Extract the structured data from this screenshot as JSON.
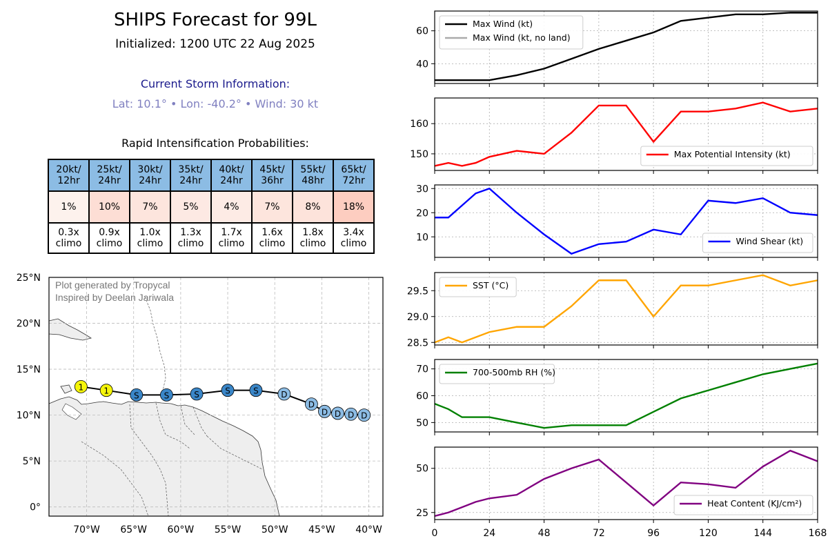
{
  "header": {
    "title": "SHIPS Forecast for 99L",
    "initialized": "Initialized: 1200 UTC 22 Aug 2025",
    "current_heading": "Current Storm Information:",
    "current_info": "Lat: 10.1° • Lon: -40.2° • Wind: 30 kt",
    "ri_heading": "Rapid Intensification Probabilities:"
  },
  "ri_table": [
    {
      "label_1": "20kt/",
      "label_2": "12hr",
      "prob": "1%",
      "prob_value": 1,
      "climo_1": "0.3x",
      "climo_2": "climo"
    },
    {
      "label_1": "25kt/",
      "label_2": "24hr",
      "prob": "10%",
      "prob_value": 10,
      "climo_1": "0.9x",
      "climo_2": "climo"
    },
    {
      "label_1": "30kt/",
      "label_2": "24hr",
      "prob": "7%",
      "prob_value": 7,
      "climo_1": "1.0x",
      "climo_2": "climo"
    },
    {
      "label_1": "35kt/",
      "label_2": "24hr",
      "prob": "5%",
      "prob_value": 5,
      "climo_1": "1.3x",
      "climo_2": "climo"
    },
    {
      "label_1": "40kt/",
      "label_2": "24hr",
      "prob": "4%",
      "prob_value": 4,
      "climo_1": "1.7x",
      "climo_2": "climo"
    },
    {
      "label_1": "45kt/",
      "label_2": "36hr",
      "prob": "7%",
      "prob_value": 7,
      "climo_1": "1.6x",
      "climo_2": "climo"
    },
    {
      "label_1": "55kt/",
      "label_2": "48hr",
      "prob": "8%",
      "prob_value": 8,
      "climo_1": "1.8x",
      "climo_2": "climo"
    },
    {
      "label_1": "65kt/",
      "label_2": "72hr",
      "prob": "18%",
      "prob_value": 18,
      "climo_1": "3.4x",
      "climo_2": "climo"
    }
  ],
  "map": {
    "credit_1": "Plot generated by Tropycal",
    "credit_2": "Inspired by Deelan Jariwala",
    "lat_ticks": [
      {
        "v": 25,
        "label": "25°N"
      },
      {
        "v": 20,
        "label": "20°N"
      },
      {
        "v": 15,
        "label": "15°N"
      },
      {
        "v": 10,
        "label": "10°N"
      },
      {
        "v": 5,
        "label": "5°N"
      },
      {
        "v": 0,
        "label": "0°"
      }
    ],
    "lon_ticks": [
      {
        "v": -70,
        "label": "70°W"
      },
      {
        "v": -65,
        "label": "65°W"
      },
      {
        "v": -60,
        "label": "60°W"
      },
      {
        "v": -55,
        "label": "55°W"
      },
      {
        "v": -50,
        "label": "50°W"
      },
      {
        "v": -45,
        "label": "45°W"
      },
      {
        "v": -40,
        "label": "40°W"
      }
    ],
    "extent": {
      "lon_min": -74,
      "lon_max": -38.5,
      "lat_min": -1,
      "lat_max": 25
    },
    "track": [
      {
        "lon": -40.5,
        "lat": 10.0,
        "cat": "D"
      },
      {
        "lon": -41.9,
        "lat": 10.1,
        "cat": "D"
      },
      {
        "lon": -43.3,
        "lat": 10.2,
        "cat": "D"
      },
      {
        "lon": -44.7,
        "lat": 10.4,
        "cat": "D"
      },
      {
        "lon": -46.1,
        "lat": 11.2,
        "cat": "D"
      },
      {
        "lon": -49.0,
        "lat": 12.3,
        "cat": "D"
      },
      {
        "lon": -52.0,
        "lat": 12.7,
        "cat": "S"
      },
      {
        "lon": -55.0,
        "lat": 12.7,
        "cat": "S"
      },
      {
        "lon": -58.3,
        "lat": 12.3,
        "cat": "S"
      },
      {
        "lon": -61.5,
        "lat": 12.2,
        "cat": "S"
      },
      {
        "lon": -64.7,
        "lat": 12.2,
        "cat": "S"
      },
      {
        "lon": -67.9,
        "lat": 12.7,
        "cat": "1"
      },
      {
        "lon": -70.6,
        "lat": 13.1,
        "cat": "1"
      }
    ],
    "colors": {
      "D": "#8cbce4",
      "S": "#3a86c8",
      "1": "#f5f50a"
    }
  },
  "chart_data": [
    {
      "type": "line",
      "name": "max-wind",
      "x": [
        0,
        6,
        12,
        18,
        24,
        36,
        48,
        60,
        72,
        84,
        96,
        108,
        120,
        132,
        144,
        156,
        168
      ],
      "series": [
        {
          "name": "Max Wind (kt)",
          "color": "#000000",
          "values": [
            30,
            30,
            30,
            30,
            30,
            33,
            37,
            43,
            49,
            54,
            59,
            66,
            68,
            70,
            70,
            71,
            71
          ]
        }
      ],
      "legend_extra": {
        "label": "Max Wind (kt, no land)",
        "color": "#aaaaaa"
      },
      "legend": "top-left",
      "ylim": [
        28,
        72
      ],
      "yticks": [
        40,
        60
      ]
    },
    {
      "type": "line",
      "name": "mpi",
      "x": [
        0,
        6,
        12,
        18,
        24,
        36,
        48,
        60,
        72,
        84,
        96,
        108,
        120,
        132,
        144,
        156,
        168
      ],
      "series": [
        {
          "name": "Max Potential Intensity (kt)",
          "color": "#ff0000",
          "values": [
            146,
            147,
            146,
            147,
            149,
            151,
            150,
            157,
            166,
            166,
            154,
            164,
            164,
            165,
            167,
            164,
            165
          ]
        }
      ],
      "legend": "bottom-right",
      "ylim": [
        144.5,
        168.5
      ],
      "yticks": [
        150,
        160
      ]
    },
    {
      "type": "line",
      "name": "shear",
      "x": [
        0,
        6,
        12,
        18,
        24,
        36,
        48,
        60,
        72,
        84,
        96,
        108,
        120,
        132,
        144,
        156,
        168
      ],
      "series": [
        {
          "name": "Wind Shear (kt)",
          "color": "#0000ff",
          "values": [
            18,
            18,
            23,
            28,
            30,
            20,
            11,
            3,
            7,
            8,
            13,
            11,
            25,
            24,
            26,
            20,
            19
          ]
        }
      ],
      "legend": "bottom-right",
      "ylim": [
        1.5,
        31.5
      ],
      "yticks": [
        10,
        20,
        30
      ]
    },
    {
      "type": "line",
      "name": "sst",
      "x": [
        0,
        6,
        12,
        18,
        24,
        36,
        48,
        60,
        72,
        84,
        96,
        108,
        120,
        132,
        144,
        156,
        168
      ],
      "series": [
        {
          "name": "SST (°C)",
          "color": "#ffa500",
          "values": [
            28.5,
            28.6,
            28.5,
            28.6,
            28.7,
            28.8,
            28.8,
            29.2,
            29.7,
            29.7,
            29.0,
            29.6,
            29.6,
            29.7,
            29.8,
            29.6,
            29.7
          ]
        }
      ],
      "legend": "top-left",
      "ylim": [
        28.45,
        29.85
      ],
      "yticks": [
        28.5,
        29.0,
        29.5
      ]
    },
    {
      "type": "line",
      "name": "rh",
      "x": [
        0,
        6,
        12,
        18,
        24,
        36,
        48,
        60,
        72,
        84,
        96,
        108,
        120,
        132,
        144,
        156,
        168
      ],
      "series": [
        {
          "name": "700-500mb RH (%)",
          "color": "#008000",
          "values": [
            57,
            55,
            52,
            52,
            52,
            50,
            48,
            49,
            49,
            49,
            54,
            59,
            62,
            65,
            68,
            70,
            72
          ]
        }
      ],
      "legend": "top-left",
      "ylim": [
        46.5,
        73.5
      ],
      "yticks": [
        50,
        60,
        70
      ]
    },
    {
      "type": "line",
      "name": "ohc",
      "x": [
        0,
        6,
        12,
        18,
        24,
        36,
        48,
        60,
        72,
        84,
        96,
        108,
        120,
        132,
        144,
        156,
        168
      ],
      "series": [
        {
          "name": "Heat Content (KJ/cm²)",
          "color": "#800080",
          "values": [
            23,
            25,
            28,
            31,
            33,
            35,
            44,
            50,
            55,
            42,
            29,
            42,
            41,
            39,
            51,
            60,
            54
          ]
        }
      ],
      "legend": "bottom-right",
      "ylim": [
        21,
        62
      ],
      "yticks": [
        25,
        50
      ]
    }
  ],
  "x_axis": {
    "ticks": [
      0,
      24,
      48,
      72,
      96,
      120,
      144,
      168
    ],
    "range": [
      0,
      168
    ]
  }
}
